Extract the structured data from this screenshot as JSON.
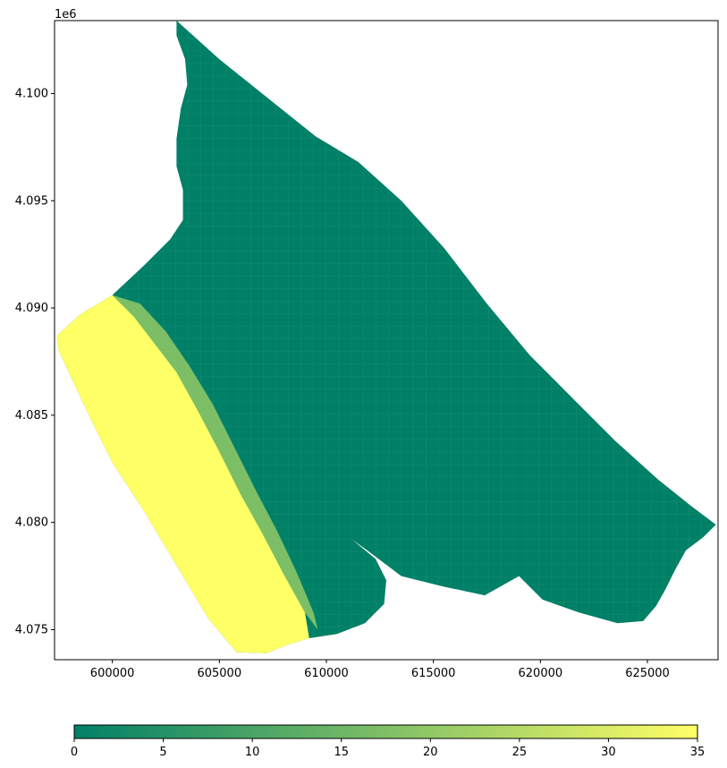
{
  "chart_data": {
    "type": "heatmap",
    "title": "",
    "xlabel": "",
    "ylabel": "",
    "y_offset_label": "1e6",
    "xlim": [
      597300,
      628300
    ],
    "ylim": [
      4073600,
      4103400
    ],
    "x_ticks": [
      600000,
      605000,
      610000,
      615000,
      620000,
      625000
    ],
    "x_tick_labels": [
      "600000",
      "605000",
      "610000",
      "615000",
      "620000",
      "625000"
    ],
    "y_ticks": [
      4075000,
      4080000,
      4085000,
      4090000,
      4095000,
      4100000
    ],
    "y_tick_labels": [
      "4.075",
      "4.080",
      "4.085",
      "4.090",
      "4.095",
      "4.100"
    ],
    "grid": false,
    "colorbar": {
      "orientation": "horizontal",
      "placement": "bottom",
      "min": 0,
      "max": 35,
      "ticks": [
        0,
        5,
        10,
        15,
        20,
        25,
        30,
        35
      ],
      "tick_labels": [
        "0",
        "5",
        "10",
        "15",
        "20",
        "25",
        "30",
        "35"
      ],
      "color_low": "#008066",
      "color_high": "#ffff66"
    },
    "region_outline": [
      [
        603000,
        4103400
      ],
      [
        605000,
        4101600
      ],
      [
        607000,
        4100000
      ],
      [
        609500,
        4098000
      ],
      [
        611500,
        4096800
      ],
      [
        613500,
        4095000
      ],
      [
        615500,
        4092800
      ],
      [
        617500,
        4090200
      ],
      [
        619500,
        4087800
      ],
      [
        621500,
        4085800
      ],
      [
        623500,
        4083800
      ],
      [
        625500,
        4082000
      ],
      [
        627000,
        4080800
      ],
      [
        628200,
        4079900
      ],
      [
        627600,
        4079300
      ],
      [
        626800,
        4078700
      ],
      [
        626300,
        4077800
      ],
      [
        625800,
        4076800
      ],
      [
        625400,
        4076100
      ],
      [
        624800,
        4075400
      ],
      [
        623600,
        4075300
      ],
      [
        621800,
        4075800
      ],
      [
        620100,
        4076400
      ],
      [
        619000,
        4077500
      ],
      [
        617400,
        4076600
      ],
      [
        615500,
        4077000
      ],
      [
        613500,
        4077500
      ],
      [
        611900,
        4078700
      ],
      [
        611200,
        4079200
      ],
      [
        612300,
        4078300
      ],
      [
        612800,
        4077300
      ],
      [
        612700,
        4076200
      ],
      [
        611800,
        4075300
      ],
      [
        610500,
        4074800
      ],
      [
        609200,
        4074600
      ],
      [
        608200,
        4074300
      ],
      [
        607200,
        4073900
      ],
      [
        605800,
        4073950
      ],
      [
        604500,
        4075500
      ],
      [
        603000,
        4078000
      ],
      [
        601500,
        4080500
      ],
      [
        600000,
        4082800
      ],
      [
        599000,
        4084800
      ],
      [
        598200,
        4086500
      ],
      [
        597500,
        4088000
      ],
      [
        597400,
        4088700
      ],
      [
        598500,
        4089700
      ],
      [
        600000,
        4090600
      ],
      [
        601500,
        4092000
      ],
      [
        602700,
        4093200
      ],
      [
        603300,
        4094100
      ],
      [
        603300,
        4095500
      ],
      [
        603000,
        4096600
      ],
      [
        603000,
        4097900
      ],
      [
        603200,
        4099300
      ],
      [
        603500,
        4100400
      ],
      [
        603400,
        4101600
      ],
      [
        603000,
        4102700
      ]
    ],
    "coastal_band_outline": [
      [
        597400,
        4088700
      ],
      [
        598500,
        4089700
      ],
      [
        600000,
        4090600
      ],
      [
        601000,
        4089600
      ],
      [
        602000,
        4088300
      ],
      [
        603000,
        4087000
      ],
      [
        604000,
        4085200
      ],
      [
        605000,
        4083300
      ],
      [
        606000,
        4081300
      ],
      [
        607000,
        4079500
      ],
      [
        608000,
        4077600
      ],
      [
        609000,
        4075800
      ],
      [
        609200,
        4074600
      ],
      [
        608200,
        4074300
      ],
      [
        607200,
        4073900
      ],
      [
        605800,
        4073950
      ],
      [
        604500,
        4075500
      ],
      [
        603000,
        4078000
      ],
      [
        601500,
        4080500
      ],
      [
        600000,
        4082800
      ],
      [
        599000,
        4084800
      ],
      [
        598200,
        4086500
      ],
      [
        597500,
        4088000
      ]
    ],
    "mid_band_outline": [
      [
        600000,
        4090600
      ],
      [
        601300,
        4090200
      ],
      [
        602500,
        4088900
      ],
      [
        603600,
        4087300
      ],
      [
        604700,
        4085500
      ],
      [
        605700,
        4083500
      ],
      [
        606700,
        4081500
      ],
      [
        607700,
        4079600
      ],
      [
        608600,
        4077700
      ],
      [
        609400,
        4075800
      ],
      [
        609600,
        4075000
      ],
      [
        609000,
        4075800
      ],
      [
        608000,
        4077600
      ],
      [
        607000,
        4079500
      ],
      [
        606000,
        4081300
      ],
      [
        605000,
        4083300
      ],
      [
        604000,
        4085200
      ],
      [
        603000,
        4087000
      ],
      [
        602000,
        4088300
      ],
      [
        601000,
        4089600
      ]
    ],
    "coastal_band_value": 35,
    "mid_band_value": 20,
    "inland_value": 0
  }
}
